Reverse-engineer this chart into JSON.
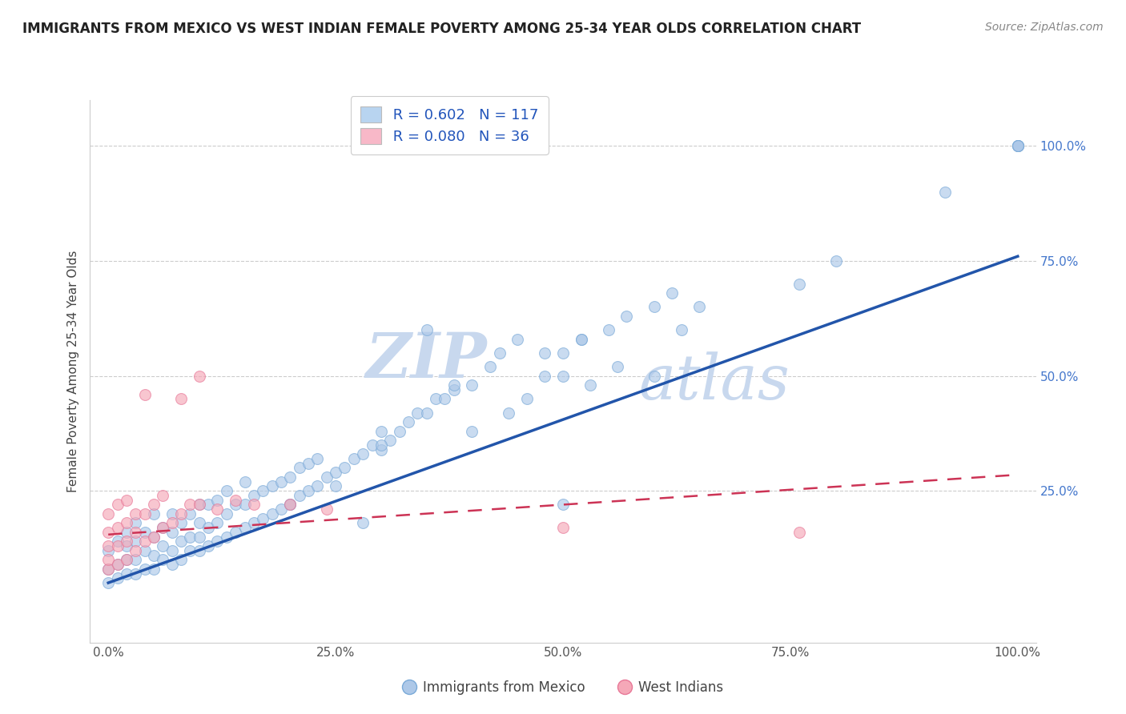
{
  "title": "IMMIGRANTS FROM MEXICO VS WEST INDIAN FEMALE POVERTY AMONG 25-34 YEAR OLDS CORRELATION CHART",
  "source": "Source: ZipAtlas.com",
  "ylabel": "Female Poverty Among 25-34 Year Olds",
  "xlim": [
    -0.02,
    1.02
  ],
  "ylim": [
    -0.08,
    1.1
  ],
  "xticks": [
    0.0,
    0.25,
    0.5,
    0.75,
    1.0
  ],
  "xticklabels": [
    "0.0%",
    "25.0%",
    "50.0%",
    "75.0%",
    "100.0%"
  ],
  "yticks_right": [
    0.25,
    0.5,
    0.75,
    1.0
  ],
  "yticklabels_right": [
    "25.0%",
    "50.0%",
    "75.0%",
    "100.0%"
  ],
  "blue_R": 0.602,
  "blue_N": 117,
  "pink_R": 0.08,
  "pink_N": 36,
  "blue_color": "#adc8e8",
  "pink_color": "#f5a8b8",
  "blue_edge": "#7aaad8",
  "pink_edge": "#e87898",
  "blue_line_color": "#2255aa",
  "pink_line_color": "#cc3355",
  "legend_box_blue": "#b8d4f0",
  "legend_box_pink": "#f8b8c8",
  "watermark": "ZIPatlas",
  "watermark_color": "#c8d8ee",
  "blue_scatter_x": [
    0.0,
    0.0,
    0.0,
    0.01,
    0.01,
    0.01,
    0.02,
    0.02,
    0.02,
    0.02,
    0.03,
    0.03,
    0.03,
    0.03,
    0.04,
    0.04,
    0.04,
    0.05,
    0.05,
    0.05,
    0.05,
    0.06,
    0.06,
    0.06,
    0.07,
    0.07,
    0.07,
    0.07,
    0.08,
    0.08,
    0.08,
    0.09,
    0.09,
    0.09,
    0.1,
    0.1,
    0.1,
    0.1,
    0.11,
    0.11,
    0.11,
    0.12,
    0.12,
    0.12,
    0.13,
    0.13,
    0.13,
    0.14,
    0.14,
    0.15,
    0.15,
    0.15,
    0.16,
    0.16,
    0.17,
    0.17,
    0.18,
    0.18,
    0.19,
    0.19,
    0.2,
    0.2,
    0.21,
    0.21,
    0.22,
    0.22,
    0.23,
    0.23,
    0.24,
    0.25,
    0.26,
    0.27,
    0.28,
    0.29,
    0.3,
    0.3,
    0.31,
    0.32,
    0.33,
    0.34,
    0.35,
    0.36,
    0.38,
    0.4,
    0.42,
    0.43,
    0.45,
    0.48,
    0.5,
    0.52,
    0.55,
    0.57,
    0.6,
    0.62,
    0.63,
    0.65,
    0.76,
    0.8,
    0.92,
    1.0,
    1.0,
    1.0,
    1.0,
    1.0,
    0.37,
    0.44,
    0.38,
    0.46,
    0.5,
    0.53,
    0.56,
    0.6,
    0.35,
    0.48,
    0.52,
    0.3,
    0.4,
    0.5,
    0.2,
    0.25,
    0.28
  ],
  "blue_scatter_y": [
    0.05,
    0.08,
    0.12,
    0.06,
    0.09,
    0.14,
    0.07,
    0.1,
    0.13,
    0.16,
    0.07,
    0.1,
    0.14,
    0.18,
    0.08,
    0.12,
    0.16,
    0.08,
    0.11,
    0.15,
    0.2,
    0.1,
    0.13,
    0.17,
    0.09,
    0.12,
    0.16,
    0.2,
    0.1,
    0.14,
    0.18,
    0.12,
    0.15,
    0.2,
    0.12,
    0.15,
    0.18,
    0.22,
    0.13,
    0.17,
    0.22,
    0.14,
    0.18,
    0.23,
    0.15,
    0.2,
    0.25,
    0.16,
    0.22,
    0.17,
    0.22,
    0.27,
    0.18,
    0.24,
    0.19,
    0.25,
    0.2,
    0.26,
    0.21,
    0.27,
    0.22,
    0.28,
    0.24,
    0.3,
    0.25,
    0.31,
    0.26,
    0.32,
    0.28,
    0.29,
    0.3,
    0.32,
    0.33,
    0.35,
    0.34,
    0.38,
    0.36,
    0.38,
    0.4,
    0.42,
    0.42,
    0.45,
    0.47,
    0.48,
    0.52,
    0.55,
    0.58,
    0.5,
    0.55,
    0.58,
    0.6,
    0.63,
    0.65,
    0.68,
    0.6,
    0.65,
    0.7,
    0.75,
    0.9,
    1.0,
    1.0,
    1.0,
    1.0,
    1.0,
    0.45,
    0.42,
    0.48,
    0.45,
    0.5,
    0.48,
    0.52,
    0.5,
    0.6,
    0.55,
    0.58,
    0.35,
    0.38,
    0.22,
    0.22,
    0.26,
    0.18
  ],
  "pink_scatter_x": [
    0.0,
    0.0,
    0.0,
    0.0,
    0.0,
    0.01,
    0.01,
    0.01,
    0.01,
    0.02,
    0.02,
    0.02,
    0.02,
    0.03,
    0.03,
    0.03,
    0.04,
    0.04,
    0.05,
    0.05,
    0.06,
    0.06,
    0.07,
    0.08,
    0.09,
    0.1,
    0.12,
    0.14,
    0.16,
    0.2,
    0.24,
    0.5,
    0.76,
    0.04,
    0.08,
    0.1
  ],
  "pink_scatter_y": [
    0.08,
    0.1,
    0.13,
    0.16,
    0.2,
    0.09,
    0.13,
    0.17,
    0.22,
    0.1,
    0.14,
    0.18,
    0.23,
    0.12,
    0.16,
    0.2,
    0.14,
    0.2,
    0.15,
    0.22,
    0.17,
    0.24,
    0.18,
    0.2,
    0.22,
    0.22,
    0.21,
    0.23,
    0.22,
    0.22,
    0.21,
    0.17,
    0.16,
    0.46,
    0.45,
    0.5
  ],
  "blue_line_x": [
    0.0,
    1.0
  ],
  "blue_line_y": [
    0.05,
    0.76
  ],
  "pink_line_x": [
    0.0,
    1.0
  ],
  "pink_line_y": [
    0.155,
    0.285
  ],
  "figsize": [
    14.06,
    8.92
  ],
  "dpi": 100
}
